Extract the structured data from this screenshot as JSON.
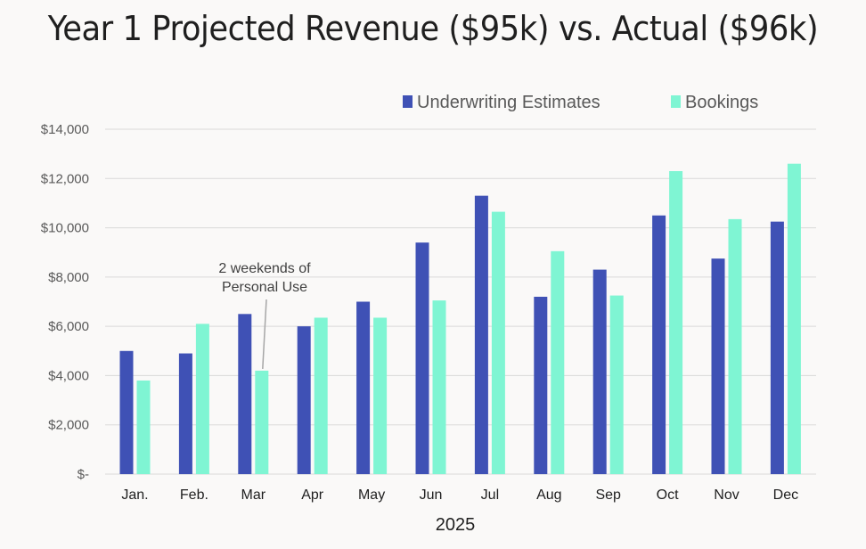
{
  "chart_data": {
    "type": "bar",
    "title": "Year 1 Projected Revenue ($95k) vs. Actual ($96k)",
    "xlabel": "2025",
    "ylabel": "",
    "categories": [
      "Jan.",
      "Feb.",
      "Mar",
      "Apr",
      "May",
      "Jun",
      "Jul",
      "Aug",
      "Sep",
      "Oct",
      "Nov",
      "Dec"
    ],
    "series": [
      {
        "name": "Underwriting Estimates",
        "color": "#3f51b5",
        "values": [
          5000,
          4900,
          6500,
          6000,
          7000,
          9400,
          11300,
          7200,
          8300,
          10500,
          8750,
          10250
        ]
      },
      {
        "name": "Bookings",
        "color": "#7ff5d3",
        "values": [
          3800,
          6100,
          4200,
          6350,
          6350,
          7050,
          10650,
          9050,
          7250,
          12300,
          10350,
          12600
        ]
      }
    ],
    "ylim": [
      0,
      14000
    ],
    "yticks": [
      {
        "value": 0,
        "label": "$-"
      },
      {
        "value": 2000,
        "label": "$2,000"
      },
      {
        "value": 4000,
        "label": "$4,000"
      },
      {
        "value": 6000,
        "label": "$6,000"
      },
      {
        "value": 8000,
        "label": "$8,000"
      },
      {
        "value": 10000,
        "label": "$10,000"
      },
      {
        "value": 12000,
        "label": "$12,000"
      },
      {
        "value": 14000,
        "label": "$14,000"
      }
    ],
    "grid": true,
    "legend_position": "top-right",
    "annotation": {
      "lines": [
        "2 weekends of",
        "Personal Use"
      ],
      "category": "Mar",
      "series": "Bookings"
    }
  }
}
